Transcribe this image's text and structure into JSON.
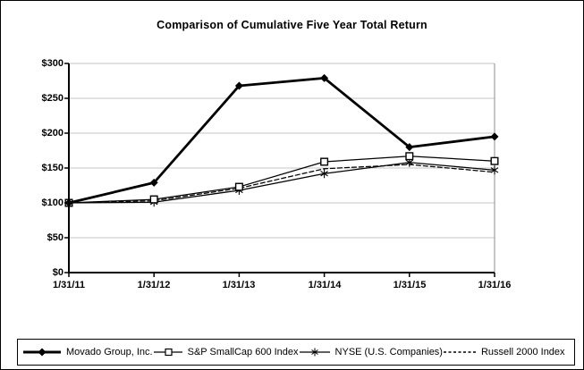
{
  "chart_data": {
    "type": "line",
    "title": "Comparison of Cumulative Five Year Total Return",
    "categories": [
      "1/31/11",
      "1/31/12",
      "1/31/13",
      "1/31/14",
      "1/31/15",
      "1/31/16"
    ],
    "y_ticks": [
      "$300",
      "$250",
      "$200",
      "$150",
      "$100",
      "$50",
      "$0"
    ],
    "y_tick_values": [
      300,
      250,
      200,
      150,
      100,
      50,
      0
    ],
    "ylim": [
      0,
      300
    ],
    "xlabel": "",
    "ylabel": "",
    "grid": "horizontal",
    "legend_position": "bottom",
    "series": [
      {
        "name": "Movado Group, Inc.",
        "marker": "diamond",
        "line": "solid-thick",
        "color": "#000000",
        "values": [
          100,
          129,
          268,
          279,
          180,
          195
        ]
      },
      {
        "name": "S&P SmallCap 600 Index",
        "marker": "square-open",
        "line": "solid-thin",
        "color": "#000000",
        "values": [
          100,
          105,
          123,
          159,
          167,
          160
        ]
      },
      {
        "name": "NYSE (U.S. Companies)",
        "marker": "asterisk",
        "line": "solid-thin",
        "color": "#000000",
        "values": [
          100,
          101,
          118,
          142,
          158,
          147
        ]
      },
      {
        "name": "Russell 2000 Index",
        "marker": "none",
        "line": "dashed",
        "color": "#000000",
        "values": [
          100,
          103,
          121,
          149,
          155,
          144
        ]
      }
    ],
    "colors": {
      "grid": "#c6c6c6",
      "plot_border": "#8c8c8c",
      "axis": "#000000",
      "background": "#ffffff"
    }
  }
}
